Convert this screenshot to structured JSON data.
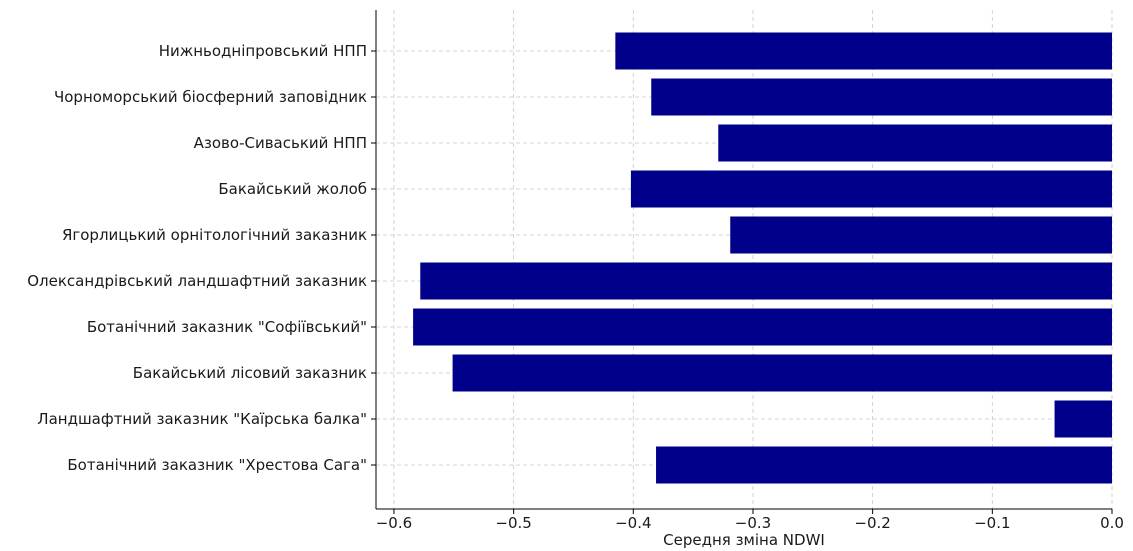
{
  "chart_data": {
    "type": "bar",
    "orientation": "horizontal",
    "categories": [
      "Нижньодніпровський НПП",
      "Чорноморський біосферний заповідник",
      "Азово-Сиваський НПП",
      "Бакайський жолоб",
      "Ягорлицький орнітологічний заказник",
      "Олександрівський ландшафтний заказник",
      "Ботанічний заказник \"Софіївський\"",
      "Бакайський лісовий заказник",
      "Ландшафтний заказник \"Каїрська балка\"",
      "Ботанічний заказник \"Хрестова Сага\""
    ],
    "values": [
      -0.415,
      -0.385,
      -0.329,
      -0.402,
      -0.319,
      -0.578,
      -0.584,
      -0.551,
      -0.048,
      -0.381
    ],
    "xlabel": "Середня зміна NDWI",
    "ylabel": "",
    "title": "",
    "xlim": [
      -0.615,
      0.0
    ],
    "xticks": [
      -0.6,
      -0.5,
      -0.4,
      -0.3,
      -0.2,
      -0.1,
      0.0
    ],
    "xtick_labels": [
      "−0.6",
      "−0.5",
      "−0.4",
      "−0.3",
      "−0.2",
      "−0.1",
      "0.0"
    ],
    "grid": true,
    "bar_color": "#00008b"
  }
}
